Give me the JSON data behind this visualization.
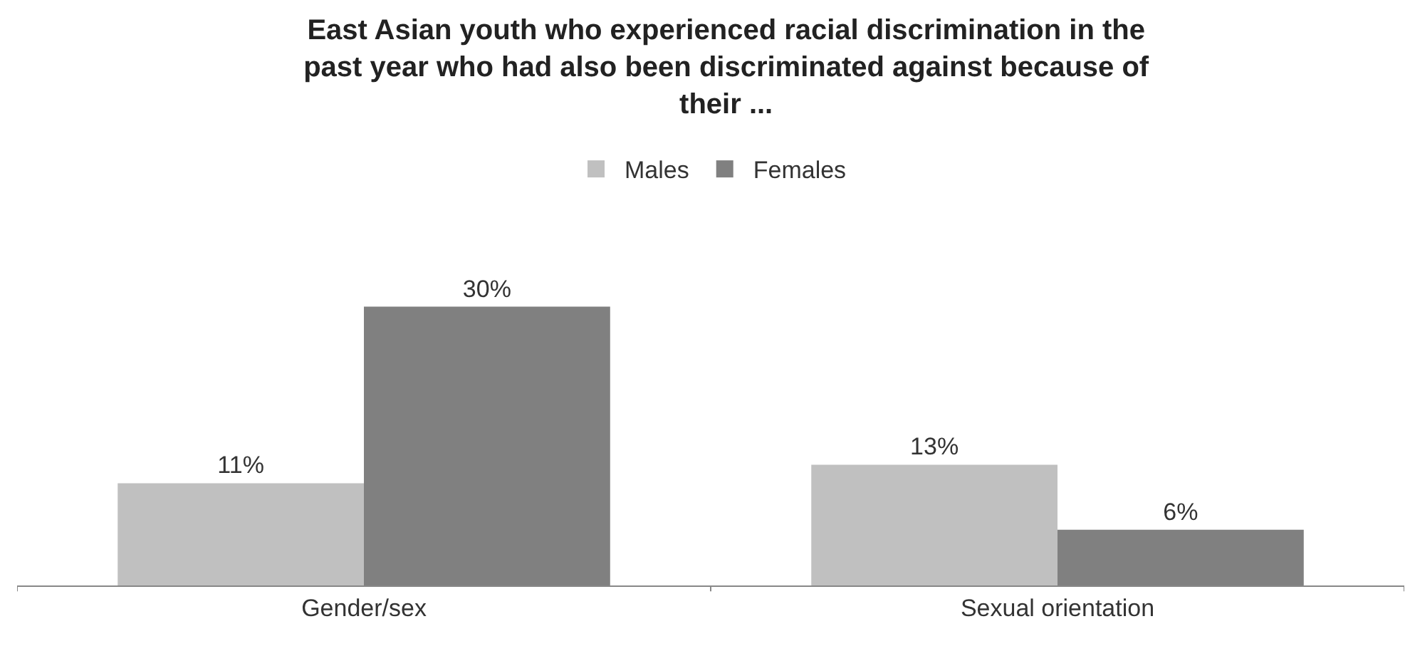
{
  "chart_data": {
    "type": "bar",
    "title": "East Asian youth who experienced racial discrimination in the past year who had also been discriminated against because of their ...",
    "categories": [
      "Gender/sex",
      "Sexual orientation"
    ],
    "series": [
      {
        "name": "Males",
        "color": "#c0c0c0",
        "values": [
          11,
          13
        ],
        "value_labels": [
          "11%",
          "13%"
        ]
      },
      {
        "name": "Females",
        "color": "#808080",
        "values": [
          30,
          6
        ],
        "value_labels": [
          "30%",
          "6%"
        ]
      }
    ],
    "legend": "top"
  }
}
